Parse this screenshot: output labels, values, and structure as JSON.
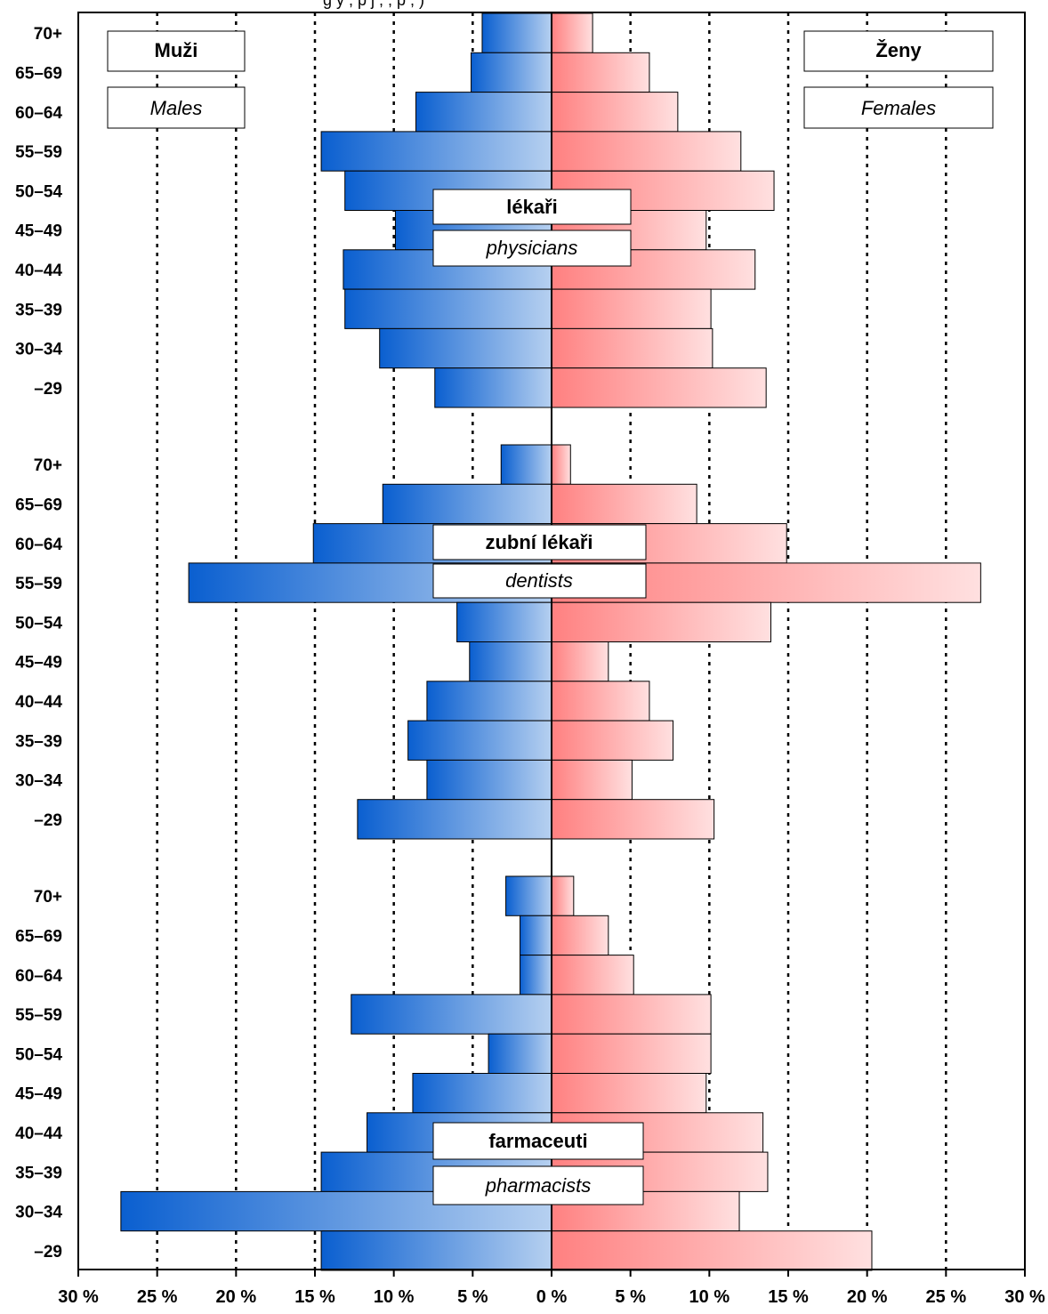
{
  "header_fragment": "g  y  ,  p  j  ,  ,  p  ,  )",
  "legend": {
    "male_cz": "Muži",
    "male_en": "Males",
    "female_cz": "Ženy",
    "female_en": "Females"
  },
  "colors": {
    "male_dark": "#0a5fd0",
    "male_light": "#b6d0f0",
    "female_dark": "#ff8080",
    "female_light": "#ffe0e0",
    "axis": "#000000"
  },
  "chart_data": {
    "type": "bar",
    "orientation": "horizontal-population-pyramid",
    "xlim": [
      -30,
      30
    ],
    "x_tick_values": [
      -30,
      -25,
      -20,
      -15,
      -10,
      -5,
      0,
      5,
      10,
      15,
      20,
      25,
      30
    ],
    "x_tick_labels": [
      "30 %",
      "25 %",
      "20 %",
      "15 %",
      "10 %",
      "5 %",
      "0 %",
      "5 %",
      "10 %",
      "15 %",
      "20 %",
      "25 %",
      "30 %"
    ],
    "grid": "vertical-dotted",
    "categories": [
      "70+",
      "65–69",
      "60–64",
      "55–59",
      "50–54",
      "45–49",
      "40–44",
      "35–39",
      "30–34",
      "–29"
    ],
    "panels": [
      {
        "title_cz": "lékaři",
        "title_en": "physicians",
        "males": [
          4.4,
          5.1,
          8.6,
          14.6,
          13.1,
          9.9,
          13.2,
          13.1,
          10.9,
          7.4
        ],
        "females": [
          2.6,
          6.2,
          8.0,
          12.0,
          14.1,
          9.8,
          12.9,
          10.1,
          10.2,
          13.6
        ]
      },
      {
        "title_cz": "zubní lékaři",
        "title_en": "dentists",
        "males": [
          3.2,
          10.7,
          15.1,
          23.0,
          6.0,
          5.2,
          7.9,
          9.1,
          7.9,
          12.3
        ],
        "females": [
          1.2,
          9.2,
          14.9,
          27.2,
          13.9,
          3.6,
          6.2,
          7.7,
          5.1,
          10.3
        ]
      },
      {
        "title_cz": "farmaceuti",
        "title_en": "pharmacists",
        "males": [
          2.9,
          2.0,
          2.0,
          12.7,
          4.0,
          8.8,
          11.7,
          14.6,
          27.3,
          14.6
        ],
        "females": [
          1.4,
          3.6,
          5.2,
          10.1,
          10.1,
          9.8,
          13.4,
          13.7,
          11.9,
          20.3
        ]
      }
    ]
  }
}
